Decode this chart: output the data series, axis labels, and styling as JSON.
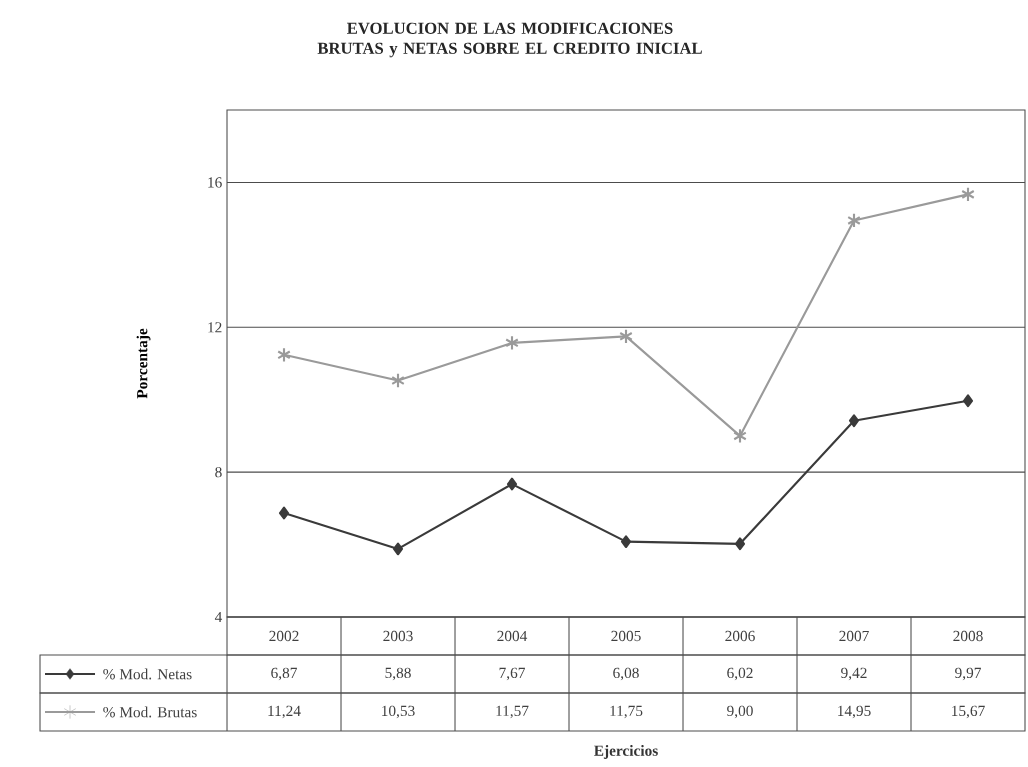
{
  "chart_data": {
    "type": "line",
    "title": "EVOLUCION DE LAS MODIFICACIONES BRUTAS y NETAS SOBRE EL CREDITO INICIAL",
    "annotations": [
      "Ejercicios"
    ],
    "ylabel": "Porcentaje",
    "categories": [
      "2002",
      "2003",
      "2004",
      "2005",
      "2006",
      "2007",
      "2008"
    ],
    "series": [
      {
        "name": "% Mod. Netas",
        "color": "#3a3a3a",
        "marker": "diamond",
        "values": [
          6.87,
          5.88,
          7.67,
          6.08,
          6.02,
          9.42,
          9.97
        ],
        "value_labels": [
          "6,87",
          "5,88",
          "7,67",
          "6,08",
          "6,02",
          "9,42",
          "9,97"
        ]
      },
      {
        "name": "% Mod. Brutas",
        "color": "#9a9a9a",
        "marker": "cross",
        "values": [
          11.24,
          10.53,
          11.57,
          11.75,
          9.0,
          14.95,
          15.67
        ],
        "value_labels": [
          "11,24",
          "10,53",
          "11,57",
          "11,75",
          "9,00",
          "14,95",
          "15,67"
        ]
      }
    ],
    "ylim": [
      4,
      18
    ],
    "yticks": [
      4,
      8,
      12,
      16
    ],
    "grid": "y",
    "legend": "bottom",
    "line_style": "solid"
  }
}
